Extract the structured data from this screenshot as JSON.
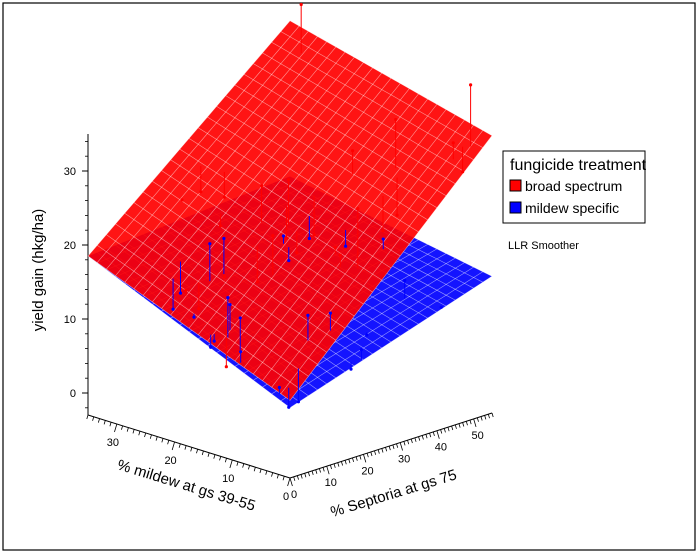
{
  "chart_data": {
    "type": "surface3d",
    "zlabel": "yield gain (hkg/ha)",
    "xlabel": "% mildew at gs 39-55",
    "ylabel": "% Septoria at gs 75",
    "z_ticks": [
      "0",
      "10",
      "20",
      "30"
    ],
    "mildew_ticks": [
      "0",
      "10",
      "20",
      "30"
    ],
    "septoria_ticks": [
      "0",
      "10",
      "20",
      "30",
      "40",
      "50"
    ],
    "legend": {
      "title": "fungicide treatment",
      "items": [
        {
          "name": "broad spectrum",
          "color": "#ff0000"
        },
        {
          "name": "mildew specific",
          "color": "#0000ff"
        }
      ]
    },
    "note": "LLR Smoother",
    "series": [
      {
        "name": "broad spectrum",
        "color": "#ff0000",
        "fitted_surface_corners": [
          {
            "mildew": 0,
            "septoria": 0,
            "z": -1
          },
          {
            "mildew": 35,
            "septoria": 0,
            "z": 10
          },
          {
            "mildew": 0,
            "septoria": 55,
            "z": 26
          },
          {
            "mildew": 35,
            "septoria": 55,
            "z": 33
          }
        ]
      },
      {
        "name": "mildew specific",
        "color": "#0000ff",
        "fitted_surface_corners": [
          {
            "mildew": 0,
            "septoria": 0,
            "z": -2
          },
          {
            "mildew": 35,
            "septoria": 0,
            "z": 10
          },
          {
            "mildew": 0,
            "septoria": 55,
            "z": 7
          },
          {
            "mildew": 35,
            "septoria": 55,
            "z": 12
          }
        ]
      }
    ]
  }
}
